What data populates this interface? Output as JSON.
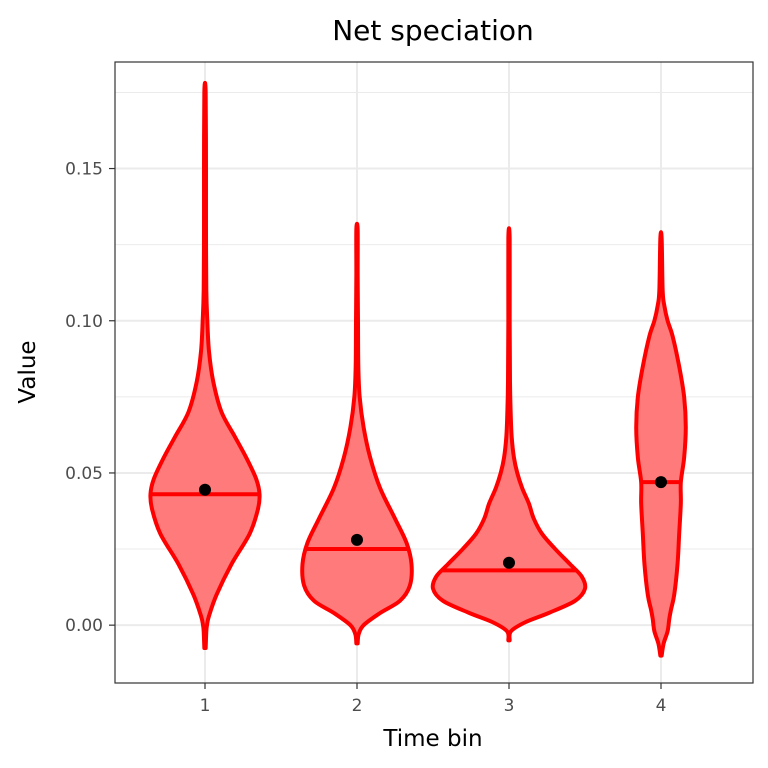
{
  "chart_data": {
    "type": "violin",
    "title": "Net speciation",
    "xlabel": "Time bin",
    "ylabel": "Value",
    "categories": [
      "1",
      "2",
      "3",
      "4"
    ],
    "ylim": [
      -0.019,
      0.185
    ],
    "y_ticks": [
      0.0,
      0.05,
      0.1,
      0.15
    ],
    "y_tick_labels": [
      "0.00",
      "0.05",
      "0.10",
      "0.15"
    ],
    "grid": true,
    "colors": {
      "fill": "#ff7b7b",
      "outline": "#ff0000",
      "point": "#000000",
      "grid": "#ebebeb",
      "panel_border": "#333333"
    },
    "series": [
      {
        "category": "1",
        "min": -0.0075,
        "max": 0.175,
        "median": 0.043,
        "mean": 0.0445,
        "profile": [
          [
            -0.0075,
            0.002
          ],
          [
            -0.002,
            0.004
          ],
          [
            0.0,
            0.006
          ],
          [
            0.003,
            0.012
          ],
          [
            0.01,
            0.035
          ],
          [
            0.02,
            0.08
          ],
          [
            0.03,
            0.135
          ],
          [
            0.038,
            0.16
          ],
          [
            0.043,
            0.165
          ],
          [
            0.048,
            0.155
          ],
          [
            0.055,
            0.125
          ],
          [
            0.062,
            0.09
          ],
          [
            0.07,
            0.05
          ],
          [
            0.08,
            0.025
          ],
          [
            0.09,
            0.012
          ],
          [
            0.1,
            0.007
          ],
          [
            0.11,
            0.004
          ],
          [
            0.13,
            0.003
          ],
          [
            0.15,
            0.003
          ],
          [
            0.175,
            0.002
          ]
        ]
      },
      {
        "category": "2",
        "min": -0.006,
        "max": 0.13,
        "median": 0.025,
        "mean": 0.028,
        "profile": [
          [
            -0.006,
            0.002
          ],
          [
            -0.003,
            0.005
          ],
          [
            0.0,
            0.02
          ],
          [
            0.004,
            0.07
          ],
          [
            0.008,
            0.13
          ],
          [
            0.013,
            0.16
          ],
          [
            0.02,
            0.165
          ],
          [
            0.027,
            0.15
          ],
          [
            0.035,
            0.115
          ],
          [
            0.045,
            0.07
          ],
          [
            0.055,
            0.04
          ],
          [
            0.065,
            0.02
          ],
          [
            0.075,
            0.008
          ],
          [
            0.085,
            0.004
          ],
          [
            0.1,
            0.003
          ],
          [
            0.115,
            0.002
          ],
          [
            0.13,
            0.002
          ]
        ]
      },
      {
        "category": "3",
        "min": -0.005,
        "max": 0.127,
        "median": 0.018,
        "mean": 0.0205,
        "profile": [
          [
            -0.005,
            0.002
          ],
          [
            -0.002,
            0.006
          ],
          [
            0.001,
            0.05
          ],
          [
            0.004,
            0.12
          ],
          [
            0.008,
            0.2
          ],
          [
            0.012,
            0.23
          ],
          [
            0.016,
            0.22
          ],
          [
            0.02,
            0.185
          ],
          [
            0.025,
            0.14
          ],
          [
            0.03,
            0.1
          ],
          [
            0.035,
            0.075
          ],
          [
            0.04,
            0.06
          ],
          [
            0.045,
            0.04
          ],
          [
            0.05,
            0.025
          ],
          [
            0.055,
            0.015
          ],
          [
            0.062,
            0.008
          ],
          [
            0.07,
            0.005
          ],
          [
            0.08,
            0.003
          ],
          [
            0.1,
            0.002
          ],
          [
            0.127,
            0.002
          ]
        ]
      },
      {
        "category": "4",
        "min": -0.01,
        "max": 0.127,
        "median": 0.047,
        "mean": 0.047,
        "profile": [
          [
            -0.01,
            0.002
          ],
          [
            -0.006,
            0.008
          ],
          [
            -0.002,
            0.02
          ],
          [
            0.002,
            0.025
          ],
          [
            0.005,
            0.03
          ],
          [
            0.01,
            0.04
          ],
          [
            0.02,
            0.05
          ],
          [
            0.03,
            0.055
          ],
          [
            0.04,
            0.06
          ],
          [
            0.047,
            0.06
          ],
          [
            0.055,
            0.07
          ],
          [
            0.065,
            0.075
          ],
          [
            0.075,
            0.07
          ],
          [
            0.085,
            0.055
          ],
          [
            0.095,
            0.035
          ],
          [
            0.1,
            0.02
          ],
          [
            0.105,
            0.01
          ],
          [
            0.11,
            0.005
          ],
          [
            0.127,
            0.002
          ]
        ]
      }
    ]
  }
}
